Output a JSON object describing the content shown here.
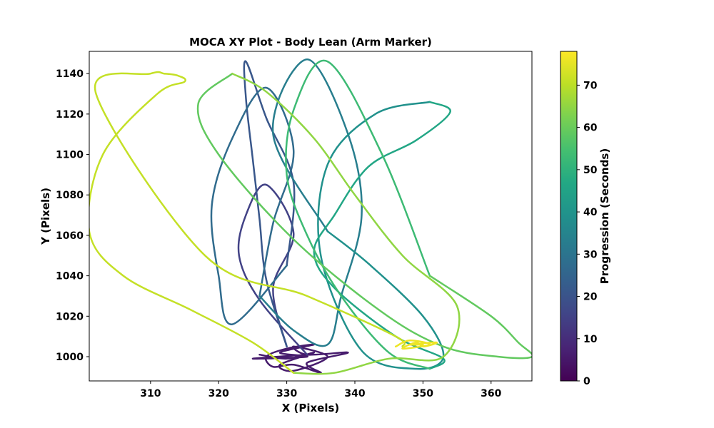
{
  "chart_data": {
    "type": "line",
    "title": "MOCA XY Plot - Body Lean (Arm Marker)",
    "xlabel": "X (Pixels)",
    "ylabel": "Y (Pixels)",
    "xlim": [
      301,
      366
    ],
    "ylim": [
      988,
      1151
    ],
    "xticks": [
      310,
      320,
      330,
      340,
      350,
      360
    ],
    "yticks": [
      1000,
      1020,
      1040,
      1060,
      1080,
      1100,
      1120,
      1140
    ],
    "grid": false,
    "colorbar": {
      "label": "Progression (Seconds)",
      "range": [
        0,
        78
      ],
      "ticks": [
        0,
        10,
        20,
        30,
        40,
        50,
        60,
        70
      ],
      "colormap": "viridis"
    },
    "series": [
      {
        "t": [
          0,
          12
        ],
        "x": [
          326,
          330,
          334,
          329,
          331,
          336,
          331,
          333,
          339,
          333,
          335,
          331,
          328,
          327,
          330,
          334,
          329,
          333,
          325,
          333
        ],
        "y": [
          1001,
          999,
          1002,
          996,
          993,
          1000,
          1005,
          1001,
          1002,
          997,
          992,
          996,
          995,
          1000,
          1004,
          1006,
          1002,
          1000,
          999,
          1001
        ]
      },
      {
        "t": [
          12,
          18
        ],
        "x": [
          333,
          326,
          323,
          324,
          327,
          331,
          328,
          330
        ],
        "y": [
          1001,
          1028,
          1050,
          1070,
          1085,
          1061,
          1034,
          1005
        ]
      },
      {
        "t": [
          18,
          24
        ],
        "x": [
          330,
          327,
          326,
          325,
          324,
          324,
          327,
          331,
          330
        ],
        "y": [
          1005,
          1038,
          1068,
          1098,
          1128,
          1146,
          1118,
          1086,
          1045
        ]
      },
      {
        "t": [
          24,
          30
        ],
        "x": [
          330,
          322,
          320,
          319,
          322,
          327,
          331,
          328,
          326
        ],
        "y": [
          1045,
          1016,
          1040,
          1075,
          1108,
          1133,
          1102,
          1066,
          1030
        ]
      },
      {
        "t": [
          30,
          36
        ],
        "x": [
          326,
          331,
          336,
          338,
          341,
          339,
          333,
          328,
          336
        ],
        "y": [
          1030,
          1013,
          1006,
          1030,
          1070,
          1110,
          1147,
          1110,
          1062
        ]
      },
      {
        "t": [
          36,
          42
        ],
        "x": [
          336,
          342,
          350,
          353,
          349,
          341,
          335,
          336,
          343,
          351
        ],
        "y": [
          1062,
          1046,
          1020,
          1000,
          994,
          1003,
          1050,
          1095,
          1120,
          1126
        ]
      },
      {
        "t": [
          42,
          50
        ],
        "x": [
          351,
          354,
          349,
          342,
          337,
          334,
          337,
          346,
          353,
          351
        ],
        "y": [
          1126,
          1121,
          1107,
          1094,
          1070,
          1052,
          1034,
          1010,
          999,
          994
        ]
      },
      {
        "t": [
          50,
          56
        ],
        "x": [
          351,
          345,
          338,
          333,
          330,
          331,
          336,
          344,
          351
        ],
        "y": [
          994,
          1002,
          1030,
          1060,
          1090,
          1122,
          1146,
          1100,
          1040
        ]
      },
      {
        "t": [
          56,
          62
        ],
        "x": [
          351,
          360,
          364,
          366,
          361,
          353,
          344,
          331,
          320,
          317,
          322
        ],
        "y": [
          1040,
          1020,
          1007,
          1000,
          1000,
          1005,
          1022,
          1058,
          1100,
          1125,
          1140
        ]
      },
      {
        "t": [
          62,
          68
        ],
        "x": [
          322,
          327,
          334,
          340,
          347,
          355,
          353,
          345,
          337,
          331
        ],
        "y": [
          1140,
          1131,
          1108,
          1080,
          1050,
          1025,
          1000,
          999,
          992,
          992
        ]
      },
      {
        "t": [
          68,
          74
        ],
        "x": [
          331,
          325,
          316,
          306,
          301,
          303,
          311,
          315,
          314,
          312,
          310,
          302,
          318,
          333,
          346,
          347
        ],
        "y": [
          992,
          1007,
          1023,
          1040,
          1062,
          1100,
          1130,
          1136,
          1139,
          1140,
          1140,
          1130,
          1050,
          1030,
          1010,
          1005
        ]
      },
      {
        "t": [
          74,
          78
        ],
        "x": [
          346,
          348,
          351,
          347,
          349,
          350,
          352,
          348,
          350
        ],
        "y": [
          1005,
          1008,
          1006,
          1004,
          1007,
          1005,
          1007,
          1006,
          1006
        ]
      }
    ]
  }
}
